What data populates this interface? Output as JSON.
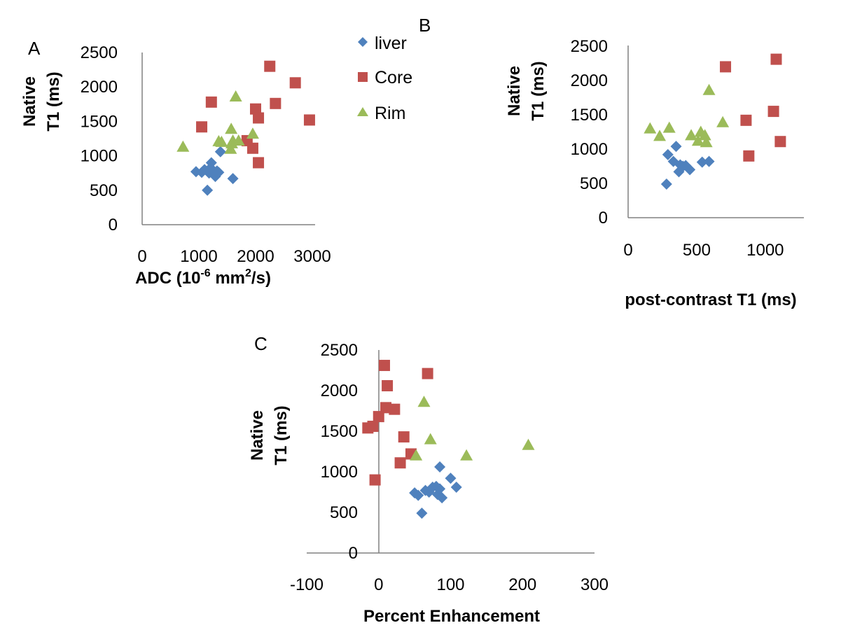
{
  "colors": {
    "liver": "#4F81BD",
    "Core": "#C0504D",
    "Rim": "#9BBB59",
    "axis": "#808080"
  },
  "legend": {
    "entries": [
      {
        "label": "liver",
        "marker": "diamond"
      },
      {
        "label": "Core",
        "marker": "square"
      },
      {
        "label": "Rim",
        "marker": "triangle"
      }
    ]
  },
  "chart_data": [
    {
      "type": "scatter",
      "panel_label": "A",
      "xlabel_main": "ADC (10",
      "xlabel_sup1": "-6",
      "xlabel_mid": " mm",
      "xlabel_sup2": "2",
      "xlabel_end": "/s)",
      "ylabel_line1": "Native",
      "ylabel_line2": "T1 (ms)",
      "xlim": [
        0,
        3000
      ],
      "ylim": [
        0,
        2500
      ],
      "xticks": [
        "0",
        "1000",
        "2000",
        "3000"
      ],
      "yticks": [
        "0",
        "500",
        "1000",
        "1500",
        "2000",
        "2500"
      ],
      "series": [
        {
          "name": "liver",
          "x": [
            950,
            1050,
            1100,
            1150,
            1180,
            1200,
            1220,
            1250,
            1270,
            1290,
            1320,
            1350,
            1380,
            1600
          ],
          "y": [
            770,
            760,
            800,
            500,
            750,
            820,
            900,
            790,
            750,
            700,
            780,
            760,
            1060,
            670
          ]
        },
        {
          "name": "Core",
          "x": [
            1050,
            1220,
            1850,
            1950,
            2000,
            2050,
            2050,
            2250,
            2350,
            2700,
            2950
          ],
          "y": [
            1420,
            1780,
            1220,
            1110,
            1680,
            1550,
            900,
            2300,
            1760,
            2060,
            1520
          ]
        },
        {
          "name": "Rim",
          "x": [
            720,
            1350,
            1400,
            1560,
            1570,
            1580,
            1600,
            1650,
            1700,
            1950
          ],
          "y": [
            1130,
            1210,
            1200,
            1100,
            1390,
            1180,
            1220,
            1860,
            1220,
            1320
          ]
        }
      ]
    },
    {
      "type": "scatter",
      "panel_label": "B",
      "xlabel": "post-contrast T1 (ms)",
      "ylabel_line1": "Native",
      "ylabel_line2": "T1 (ms)",
      "xlim": [
        0,
        1200
      ],
      "ylim": [
        0,
        2500
      ],
      "xticks": [
        "0",
        "500",
        "1000"
      ],
      "yticks": [
        "0",
        "500",
        "1000",
        "1500",
        "2000",
        "2500"
      ],
      "series": [
        {
          "name": "liver",
          "x": [
            280,
            290,
            330,
            350,
            370,
            380,
            400,
            420,
            450,
            540,
            590
          ],
          "y": [
            490,
            920,
            820,
            1040,
            670,
            770,
            750,
            760,
            700,
            810,
            820
          ]
        },
        {
          "name": "Core",
          "x": [
            710,
            860,
            880,
            1060,
            1080,
            1110
          ],
          "y": [
            2200,
            1420,
            900,
            1550,
            2310,
            1110
          ]
        },
        {
          "name": "Rim",
          "x": [
            160,
            230,
            300,
            460,
            510,
            530,
            560,
            570,
            590,
            690
          ],
          "y": [
            1300,
            1190,
            1310,
            1200,
            1120,
            1250,
            1200,
            1100,
            1860,
            1390
          ]
        }
      ]
    },
    {
      "type": "scatter",
      "panel_label": "C",
      "xlabel": "Percent Enhancement",
      "ylabel_line1": "Native",
      "ylabel_line2": "T1 (ms)",
      "xlim": [
        -100,
        300
      ],
      "ylim": [
        0,
        2500
      ],
      "xticks": [
        "-100",
        "0",
        "100",
        "200",
        "300"
      ],
      "yticks": [
        "0",
        "500",
        "1000",
        "1500",
        "2000",
        "2500"
      ],
      "series": [
        {
          "name": "liver",
          "x": [
            50,
            55,
            60,
            65,
            70,
            75,
            80,
            82,
            85,
            85,
            88,
            100,
            108
          ],
          "y": [
            740,
            710,
            490,
            770,
            750,
            810,
            820,
            720,
            790,
            1060,
            680,
            920,
            810
          ]
        },
        {
          "name": "Core",
          "x": [
            -15,
            -8,
            -5,
            0,
            8,
            10,
            12,
            22,
            30,
            35,
            45,
            68
          ],
          "y": [
            1540,
            1560,
            900,
            1680,
            2310,
            1790,
            2060,
            1770,
            1110,
            1430,
            1220,
            2210
          ]
        },
        {
          "name": "Rim",
          "x": [
            52,
            63,
            72,
            122,
            208
          ],
          "y": [
            1200,
            1860,
            1400,
            1200,
            1330
          ]
        }
      ]
    }
  ]
}
